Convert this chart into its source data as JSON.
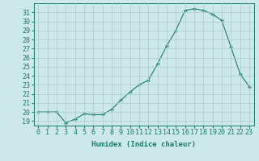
{
  "x": [
    0,
    1,
    2,
    3,
    4,
    5,
    6,
    7,
    8,
    9,
    10,
    11,
    12,
    13,
    14,
    15,
    16,
    17,
    18,
    19,
    20,
    21,
    22,
    23
  ],
  "y": [
    20.0,
    20.0,
    20.0,
    18.8,
    19.2,
    19.8,
    19.7,
    19.7,
    20.3,
    21.3,
    22.2,
    23.0,
    23.5,
    25.3,
    27.3,
    29.0,
    31.2,
    31.4,
    31.2,
    30.8,
    30.1,
    27.2,
    24.2,
    22.8
  ],
  "xlabel": "Humidex (Indice chaleur)",
  "ylim": [
    18.5,
    32.0
  ],
  "xlim": [
    -0.5,
    23.5
  ],
  "yticks": [
    19,
    20,
    21,
    22,
    23,
    24,
    25,
    26,
    27,
    28,
    29,
    30,
    31
  ],
  "xticks": [
    0,
    1,
    2,
    3,
    4,
    5,
    6,
    7,
    8,
    9,
    10,
    11,
    12,
    13,
    14,
    15,
    16,
    17,
    18,
    19,
    20,
    21,
    22,
    23
  ],
  "line_color": "#1a7a6e",
  "marker_color": "#1a7a6e",
  "bg_color": "#cce8e8",
  "grid_color": "#aacccc",
  "label_color": "#1a7a6e",
  "xlabel_fontsize": 6.5,
  "tick_fontsize": 6.0
}
